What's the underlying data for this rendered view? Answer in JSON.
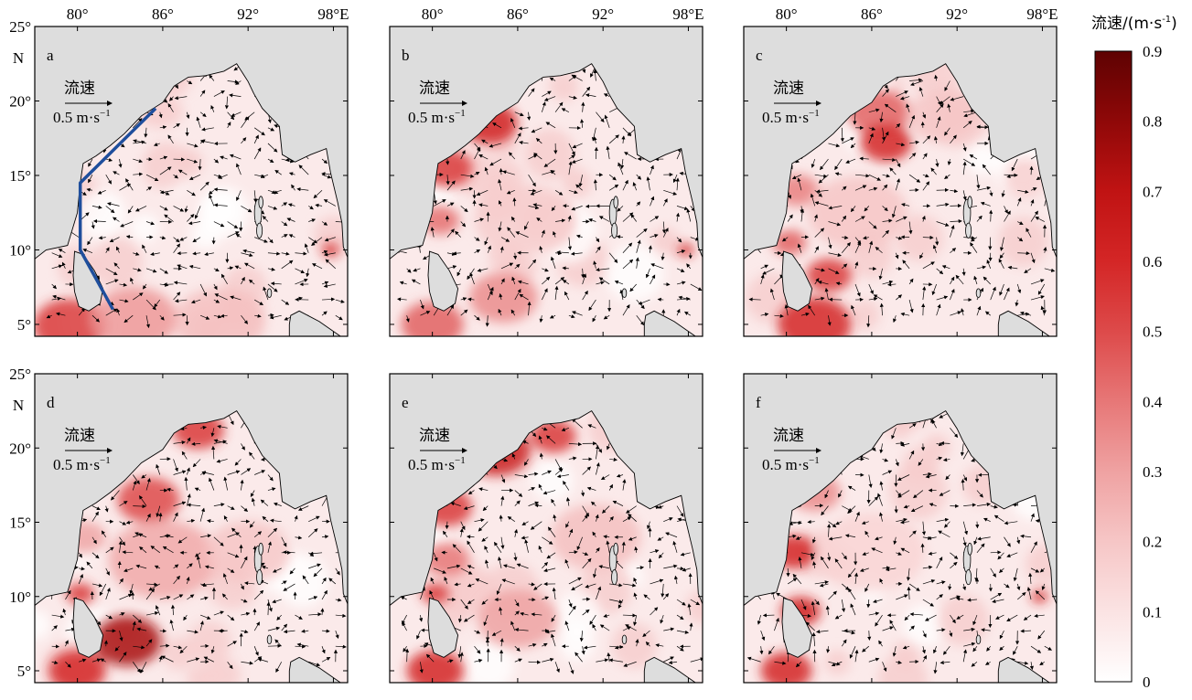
{
  "chart_data": {
    "type": "heatmap",
    "description_fields_only_visible": true,
    "x_ticks": [
      "80°",
      "86°",
      "92°",
      "98°E"
    ],
    "x_tick_values": [
      80,
      86,
      92,
      98
    ],
    "y_ticks": [
      "25°",
      "N",
      "20°",
      "15°",
      "10°",
      "5°"
    ],
    "y_tick_values": [
      20,
      15,
      10,
      5
    ],
    "y_top_label": "25°",
    "y_top_unit": "N",
    "lon_range": [
      77,
      99
    ],
    "lat_range": [
      4.2,
      25
    ],
    "ref_arrow": {
      "label_top": "流速",
      "label_bottom": "0.5 m·s",
      "superscript": "−1",
      "value": 0.5
    },
    "colorbar": {
      "title": "流速/(m·s",
      "title_sup": "-1",
      "title_end": ")",
      "ticks": [
        "0",
        "0.1",
        "0.2",
        "0.3",
        "0.4",
        "0.5",
        "0.6",
        "0.7",
        "0.8",
        "0.9"
      ],
      "range": [
        0,
        0.9
      ],
      "colors": [
        "#ffffff",
        "#fbe3e3",
        "#f6c6c6",
        "#efa2a2",
        "#e77777",
        "#dd4a4a",
        "#d42626",
        "#c01313",
        "#8f0808",
        "#5e0202"
      ]
    },
    "panels": [
      {
        "label": "a",
        "hotspots": [
          {
            "lon": 79.5,
            "lat": 4.9,
            "r": 2.6,
            "v": 0.55
          },
          {
            "lon": 84.0,
            "lat": 5.4,
            "r": 3.0,
            "v": 0.32
          },
          {
            "lon": 90.0,
            "lat": 5.2,
            "r": 3.2,
            "v": 0.22
          },
          {
            "lon": 85.8,
            "lat": 19.3,
            "r": 1.6,
            "v": 0.18
          },
          {
            "lon": 97.8,
            "lat": 10.0,
            "r": 0.6,
            "v": 0.6
          }
        ],
        "section_line": [
          [
            85.5,
            19.5
          ],
          [
            80.2,
            14.5
          ],
          [
            80.2,
            10.0
          ],
          [
            82.5,
            6.0
          ]
        ],
        "flow": [
          [
            0.06,
            0.0
          ],
          [
            -0.05,
            0.02
          ],
          [
            0.12,
            0.03
          ],
          [
            -0.06,
            -0.02
          ],
          [
            0.04,
            -0.05
          ]
        ]
      },
      {
        "label": "b",
        "hotspots": [
          {
            "lon": 84.0,
            "lat": 18.5,
            "r": 2.0,
            "v": 0.62
          },
          {
            "lon": 81.0,
            "lat": 15.5,
            "r": 1.8,
            "v": 0.55
          },
          {
            "lon": 80.5,
            "lat": 12.0,
            "r": 1.4,
            "v": 0.42
          },
          {
            "lon": 80.0,
            "lat": 5.0,
            "r": 2.2,
            "v": 0.45
          },
          {
            "lon": 85.0,
            "lat": 6.8,
            "r": 2.4,
            "v": 0.35
          },
          {
            "lon": 86.5,
            "lat": 12.0,
            "r": 3.5,
            "v": 0.18
          },
          {
            "lon": 97.8,
            "lat": 10.0,
            "r": 0.6,
            "v": 0.6
          }
        ],
        "section_line": [],
        "flow": [
          [
            0.1,
            0.08
          ],
          [
            -0.05,
            0.03
          ],
          [
            0.04,
            -0.05
          ],
          [
            -0.06,
            -0.02
          ],
          [
            0.03,
            0.06
          ]
        ]
      },
      {
        "label": "c",
        "hotspots": [
          {
            "lon": 86.5,
            "lat": 19.2,
            "r": 2.2,
            "v": 0.45
          },
          {
            "lon": 87.0,
            "lat": 17.2,
            "r": 1.8,
            "v": 0.6
          },
          {
            "lon": 80.8,
            "lat": 14.0,
            "r": 1.5,
            "v": 0.38
          },
          {
            "lon": 80.2,
            "lat": 10.5,
            "r": 1.2,
            "v": 0.45
          },
          {
            "lon": 83.0,
            "lat": 8.3,
            "r": 1.6,
            "v": 0.55
          },
          {
            "lon": 82.0,
            "lat": 5.0,
            "r": 2.6,
            "v": 0.6
          },
          {
            "lon": 85.0,
            "lat": 12.5,
            "r": 3.5,
            "v": 0.2
          },
          {
            "lon": 91.0,
            "lat": 19.0,
            "r": 2.5,
            "v": 0.2
          }
        ],
        "section_line": [],
        "flow": [
          [
            0.08,
            0.05
          ],
          [
            0.06,
            -0.04
          ],
          [
            -0.05,
            0.06
          ],
          [
            0.1,
            0.09
          ],
          [
            -0.04,
            -0.05
          ]
        ]
      },
      {
        "label": "d",
        "hotspots": [
          {
            "lon": 88.5,
            "lat": 21.2,
            "r": 1.8,
            "v": 0.55
          },
          {
            "lon": 85.0,
            "lat": 16.5,
            "r": 2.2,
            "v": 0.5
          },
          {
            "lon": 80.2,
            "lat": 10.2,
            "r": 1.0,
            "v": 0.55
          },
          {
            "lon": 83.5,
            "lat": 7.0,
            "r": 2.4,
            "v": 0.75
          },
          {
            "lon": 80.0,
            "lat": 5.0,
            "r": 2.0,
            "v": 0.6
          },
          {
            "lon": 86.0,
            "lat": 12.5,
            "r": 3.8,
            "v": 0.28
          },
          {
            "lon": 92.0,
            "lat": 13.0,
            "r": 3.0,
            "v": 0.2
          },
          {
            "lon": 80.5,
            "lat": 14.0,
            "r": 1.6,
            "v": 0.3
          }
        ],
        "section_line": [],
        "flow": [
          [
            0.09,
            0.07
          ],
          [
            -0.04,
            0.05
          ],
          [
            0.06,
            -0.03
          ],
          [
            -0.07,
            -0.04
          ],
          [
            0.05,
            0.04
          ]
        ]
      },
      {
        "label": "e",
        "hotspots": [
          {
            "lon": 84.5,
            "lat": 19.8,
            "r": 2.4,
            "v": 0.65
          },
          {
            "lon": 81.0,
            "lat": 16.0,
            "r": 1.8,
            "v": 0.55
          },
          {
            "lon": 81.0,
            "lat": 12.5,
            "r": 1.6,
            "v": 0.4
          },
          {
            "lon": 88.5,
            "lat": 20.8,
            "r": 1.6,
            "v": 0.55
          },
          {
            "lon": 80.2,
            "lat": 10.2,
            "r": 1.0,
            "v": 0.55
          },
          {
            "lon": 80.2,
            "lat": 5.0,
            "r": 2.0,
            "v": 0.6
          },
          {
            "lon": 86.0,
            "lat": 8.5,
            "r": 2.8,
            "v": 0.3
          },
          {
            "lon": 91.5,
            "lat": 14.0,
            "r": 3.2,
            "v": 0.22
          }
        ],
        "section_line": [],
        "flow": [
          [
            -0.08,
            0.05
          ],
          [
            0.05,
            0.04
          ],
          [
            -0.04,
            -0.06
          ],
          [
            0.07,
            -0.03
          ],
          [
            -0.05,
            0.07
          ]
        ]
      },
      {
        "label": "f",
        "hotspots": [
          {
            "lon": 80.5,
            "lat": 13.0,
            "r": 1.6,
            "v": 0.6
          },
          {
            "lon": 81.0,
            "lat": 9.0,
            "r": 1.4,
            "v": 0.62
          },
          {
            "lon": 80.0,
            "lat": 5.0,
            "r": 1.8,
            "v": 0.6
          },
          {
            "lon": 82.0,
            "lat": 17.0,
            "r": 1.8,
            "v": 0.35
          },
          {
            "lon": 86.0,
            "lat": 13.0,
            "r": 3.8,
            "v": 0.15
          },
          {
            "lon": 97.8,
            "lat": 10.0,
            "r": 0.6,
            "v": 0.6
          }
        ],
        "section_line": [],
        "flow": [
          [
            -0.04,
            -0.06
          ],
          [
            0.05,
            -0.03
          ],
          [
            -0.06,
            0.04
          ],
          [
            0.04,
            0.05
          ],
          [
            -0.03,
            -0.04
          ]
        ]
      }
    ]
  }
}
